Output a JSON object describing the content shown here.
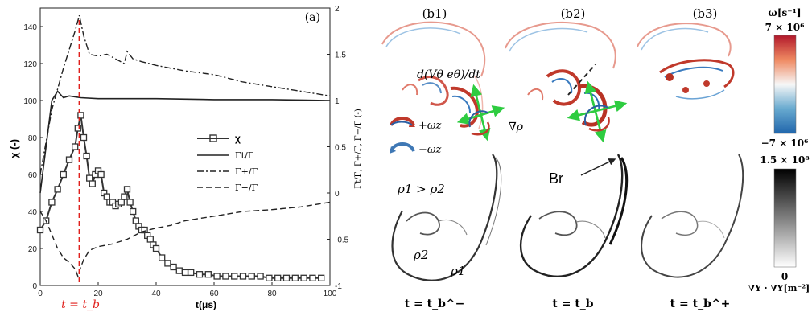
{
  "chart_data": {
    "type": "line",
    "panel_label": "(a)",
    "xlabel": "t(μs)",
    "ylabel_left": "χ (-)",
    "ylabel_right": "Γt/Γ,  Γ+/Γ,  Γ−/Γ (-)",
    "xlim": [
      0,
      100
    ],
    "ylim_left": [
      0,
      150
    ],
    "ylim_right": [
      -1,
      2
    ],
    "x_ticks": [
      "0",
      "20",
      "40",
      "60",
      "80",
      "100"
    ],
    "y_left_ticks": [
      "0",
      "20",
      "40",
      "60",
      "80",
      "100",
      "120",
      "140"
    ],
    "y_right_ticks": [
      "-1",
      "-0.5",
      "0",
      "0.5",
      "1",
      "1.5",
      "2"
    ],
    "marker_label": "t = t_b",
    "marker_x": 13.5,
    "legend": {
      "placement": "right-middle",
      "entries": [
        "χ",
        "Γt/Γ",
        "Γ+/Γ",
        "Γ−/Γ"
      ]
    },
    "series": [
      {
        "name": "χ",
        "axis": "left",
        "style": "solid-square",
        "x": [
          0,
          2,
          4,
          6,
          8,
          10,
          12,
          13,
          14,
          15,
          16,
          17,
          18,
          19,
          20,
          21,
          22,
          23,
          24,
          25,
          26,
          27,
          28,
          29,
          30,
          31,
          32,
          33,
          34,
          35,
          36,
          37,
          38,
          39,
          40,
          42,
          44,
          46,
          48,
          50,
          52,
          55,
          58,
          61,
          64,
          67,
          70,
          73,
          76,
          79,
          82,
          85,
          88,
          91,
          94,
          97
        ],
        "y": [
          30,
          35,
          45,
          52,
          60,
          68,
          75,
          85,
          92,
          80,
          70,
          58,
          55,
          60,
          62,
          60,
          50,
          48,
          45,
          45,
          43,
          44,
          45,
          48,
          52,
          45,
          40,
          35,
          32,
          30,
          30,
          27,
          25,
          22,
          20,
          15,
          12,
          10,
          8,
          7,
          7,
          6,
          6,
          5,
          5,
          5,
          5,
          5,
          5,
          4,
          4,
          4,
          4,
          4,
          4,
          4
        ]
      },
      {
        "name": "Γt/Γ",
        "axis": "right",
        "style": "solid",
        "x": [
          0,
          2,
          4,
          6,
          8,
          10,
          12,
          14,
          20,
          40,
          60,
          80,
          100
        ],
        "y": [
          0.0,
          0.5,
          1.0,
          1.1,
          1.03,
          1.05,
          1.04,
          1.03,
          1.02,
          1.02,
          1.01,
          1.01,
          1.0
        ]
      },
      {
        "name": "Γ+/Γ",
        "axis": "right",
        "style": "dash-dot",
        "x": [
          0,
          4,
          8,
          10,
          12,
          13.5,
          15,
          17,
          20,
          23,
          26,
          29,
          30,
          32,
          35,
          40,
          50,
          60,
          70,
          80,
          90,
          100
        ],
        "y": [
          0.2,
          0.9,
          1.35,
          1.55,
          1.75,
          1.92,
          1.7,
          1.5,
          1.48,
          1.5,
          1.45,
          1.4,
          1.53,
          1.45,
          1.42,
          1.38,
          1.32,
          1.28,
          1.2,
          1.15,
          1.1,
          1.05
        ]
      },
      {
        "name": "Γ−/Γ",
        "axis": "right",
        "style": "dashed",
        "x": [
          0,
          2,
          4,
          6,
          8,
          10,
          12,
          13,
          14,
          15,
          17,
          20,
          25,
          30,
          35,
          40,
          45,
          50,
          60,
          70,
          80,
          90,
          100
        ],
        "y": [
          -0.2,
          -0.3,
          -0.45,
          -0.6,
          -0.7,
          -0.75,
          -0.82,
          -0.9,
          -0.8,
          -0.72,
          -0.62,
          -0.58,
          -0.55,
          -0.5,
          -0.42,
          -0.38,
          -0.35,
          -0.3,
          -0.25,
          -0.2,
          -0.18,
          -0.15,
          -0.1
        ]
      }
    ]
  },
  "panels_b": {
    "titles": [
      "(b1)",
      "(b2)",
      "(b3)"
    ],
    "times": [
      "t = t_b^−",
      "t = t_b",
      "t = t_b^+"
    ],
    "annotations": {
      "ddt": "d(Vθ eθ)/dt",
      "grad_rho": "∇ρ",
      "plus_omega": "+ωz",
      "minus_omega": "−ωz",
      "rho_ineq": "ρ1 > ρ2",
      "rho2": "ρ2",
      "rho1": "ρ1",
      "br": "Br"
    },
    "colorbar_top": {
      "label": "ω[s⁻¹]",
      "max": "7 × 10⁶",
      "min": "−7 × 10⁶",
      "colors": [
        "#c62828",
        "#ffffff",
        "#1f5fa8"
      ]
    },
    "colorbar_bottom": {
      "max": "1.5 × 10⁸",
      "min": "0",
      "label": "∇Y · ∇Y[m⁻²]"
    }
  }
}
